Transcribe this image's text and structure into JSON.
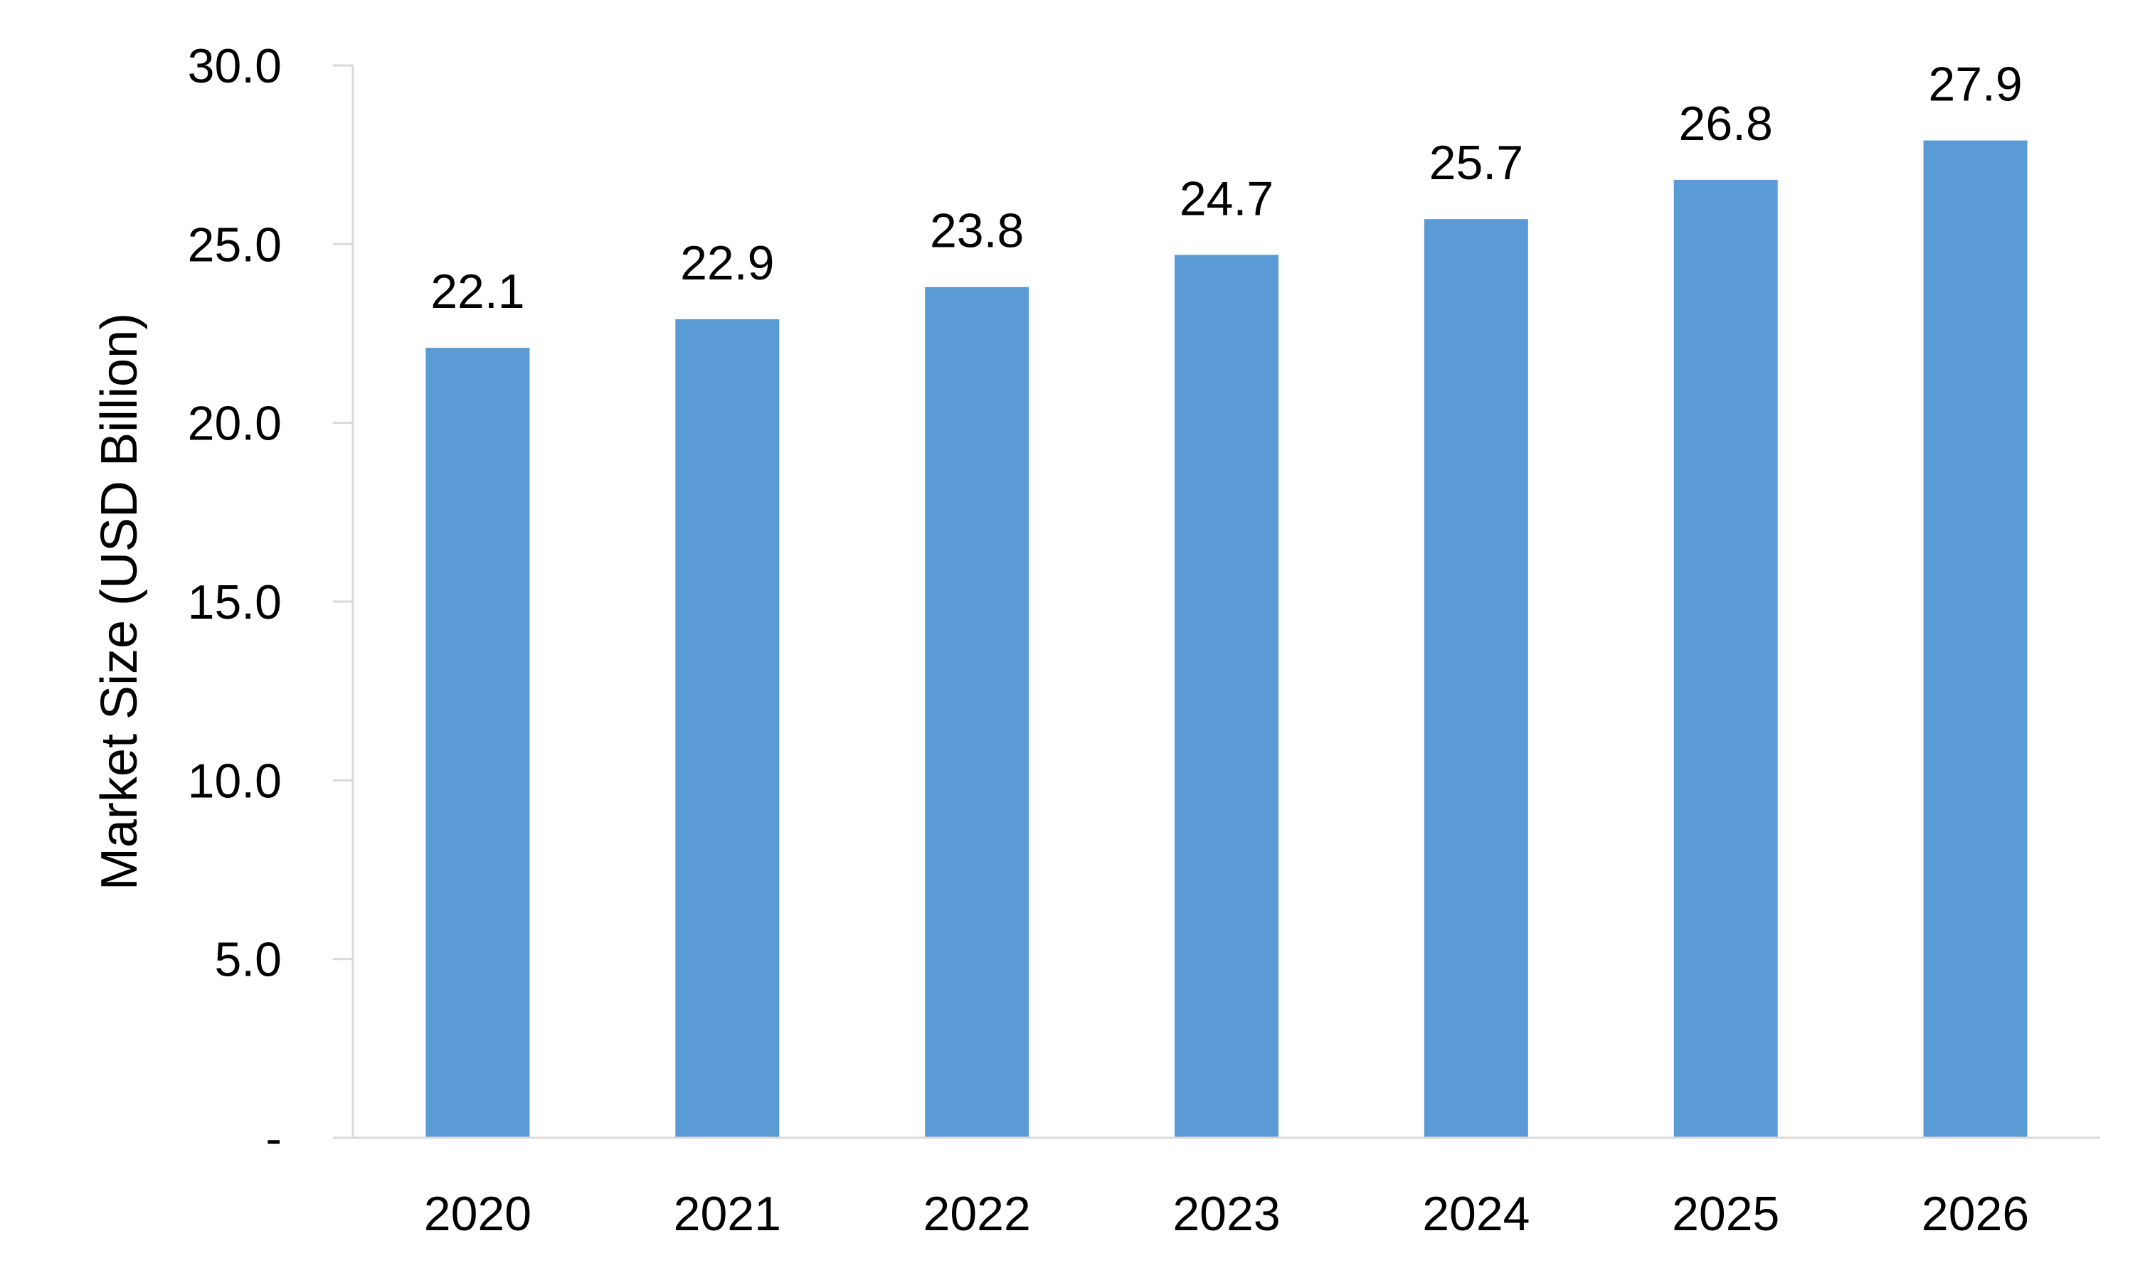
{
  "chart_data": {
    "type": "bar",
    "title": "",
    "xlabel": "",
    "ylabel": "Market Size (USD Billion)",
    "categories": [
      "2020",
      "2021",
      "2022",
      "2023",
      "2024",
      "2025",
      "2026"
    ],
    "values": [
      22.1,
      22.9,
      23.8,
      24.7,
      25.7,
      26.8,
      27.9
    ],
    "data_labels": [
      "22.1",
      "22.9",
      "23.8",
      "24.7",
      "25.7",
      "26.8",
      "27.9"
    ],
    "ylim": [
      0,
      30
    ],
    "y_ticks": [
      0,
      5,
      10,
      15,
      20,
      25,
      30
    ],
    "y_tick_labels": [
      "-",
      "5.0",
      "10.0",
      "15.0",
      "20.0",
      "25.0",
      "30.0"
    ],
    "grid": false,
    "legend": "none",
    "bar_color": "#5b9bd5"
  }
}
